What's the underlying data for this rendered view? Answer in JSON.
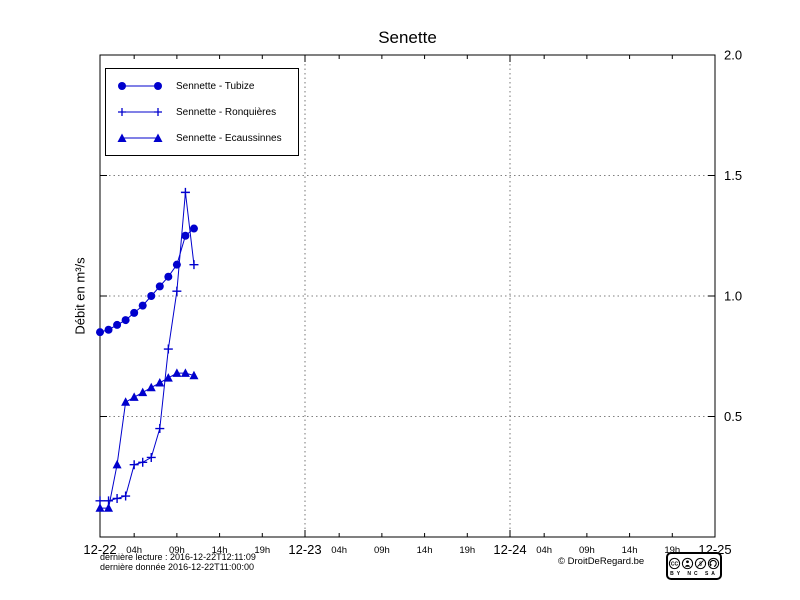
{
  "chart_data": {
    "type": "line",
    "title": "Senette",
    "ylabel": "Débit en m³/s",
    "ylim": [
      0,
      2.0
    ],
    "xlim_hours": [
      0,
      72
    ],
    "grid": true,
    "legend_position": "top-left",
    "accent_color": "#0000cd",
    "y_ticks": [
      {
        "value": 2.0,
        "label": "2.0"
      },
      {
        "value": 1.5,
        "label": "1.5"
      },
      {
        "value": 1.0,
        "label": "1.0"
      },
      {
        "value": 0.5,
        "label": "0.5"
      }
    ],
    "grid_y_values": [
      0.5,
      1.0,
      1.5
    ],
    "grid_x_hours": [
      24,
      48
    ],
    "x_day_ticks": [
      {
        "hour": 0,
        "label": "12-22"
      },
      {
        "hour": 24,
        "label": "12-23"
      },
      {
        "hour": 48,
        "label": "12-24"
      },
      {
        "hour": 72,
        "label": "12-25"
      }
    ],
    "x_hour_ticks": [
      {
        "hour": 4,
        "label": "04h"
      },
      {
        "hour": 9,
        "label": "09h"
      },
      {
        "hour": 14,
        "label": "14h"
      },
      {
        "hour": 19,
        "label": "19h"
      },
      {
        "hour": 28,
        "label": "04h"
      },
      {
        "hour": 33,
        "label": "09h"
      },
      {
        "hour": 38,
        "label": "14h"
      },
      {
        "hour": 43,
        "label": "19h"
      },
      {
        "hour": 52,
        "label": "04h"
      },
      {
        "hour": 57,
        "label": "09h"
      },
      {
        "hour": 62,
        "label": "14h"
      },
      {
        "hour": 67,
        "label": "19h"
      }
    ],
    "series": [
      {
        "name": "Sennette - Tubize",
        "marker": "circle",
        "color": "#0000cd",
        "x_hours": [
          0,
          1,
          2,
          3,
          4,
          5,
          6,
          7,
          8,
          9,
          10,
          11
        ],
        "values": [
          0.85,
          0.86,
          0.88,
          0.9,
          0.93,
          0.96,
          1.0,
          1.04,
          1.08,
          1.13,
          1.25,
          1.28
        ]
      },
      {
        "name": "Sennette - Ronquières",
        "marker": "plus",
        "color": "#0000cd",
        "x_hours": [
          0,
          1,
          2,
          3,
          4,
          5,
          6,
          7,
          8,
          9,
          10,
          11
        ],
        "values": [
          0.15,
          0.15,
          0.16,
          0.17,
          0.3,
          0.31,
          0.33,
          0.45,
          0.78,
          1.02,
          1.43,
          1.13
        ]
      },
      {
        "name": "Sennette - Ecaussinnes",
        "marker": "triangle",
        "color": "#0000cd",
        "x_hours": [
          0,
          1,
          2,
          3,
          4,
          5,
          6,
          7,
          8,
          9,
          10,
          11
        ],
        "values": [
          0.12,
          0.12,
          0.3,
          0.56,
          0.58,
          0.6,
          0.62,
          0.64,
          0.66,
          0.68,
          0.68,
          0.67
        ]
      }
    ]
  },
  "footer": {
    "last_read": "dernière lecture : 2016-12-22T12:11:09",
    "last_data": "dernière donnée  2016-12-22T11:00:00",
    "copyright": "© DroitDeRegard.be",
    "license_name": "CC",
    "license_text": "BY NC SA"
  }
}
